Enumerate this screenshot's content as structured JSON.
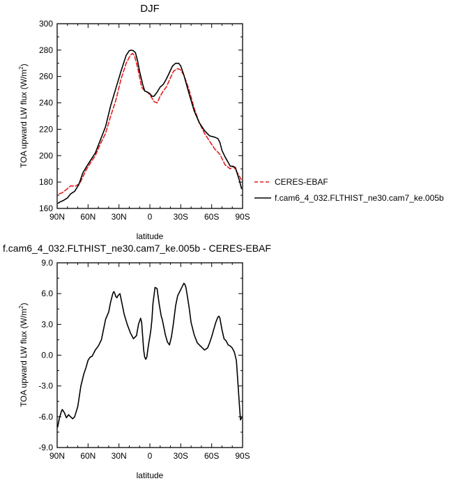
{
  "chart_data": [
    {
      "type": "line",
      "title": "DJF",
      "xlabel": "latitude",
      "ylabel": "TOA upward LW flux (W/m",
      "ylabel_sup": "2",
      "ylabel_close": ")",
      "xlim": [
        90,
        -90
      ],
      "ylim": [
        160,
        300
      ],
      "xticks": [
        90,
        60,
        30,
        0,
        -30,
        -60,
        -90
      ],
      "xtick_labels": [
        "90N",
        "60N",
        "30N",
        "0",
        "30S",
        "60S",
        "90S"
      ],
      "yticks": [
        160,
        180,
        200,
        220,
        240,
        260,
        280,
        300
      ],
      "ytick_labels": [
        "160",
        "180",
        "200",
        "220",
        "240",
        "260",
        "280",
        "300"
      ],
      "legend_position": "right",
      "series": [
        {
          "name": "CERES-EBAF",
          "color": "#e41a1c",
          "dash": "dashed",
          "x": [
            88,
            85,
            80,
            77,
            72,
            68,
            62,
            58,
            53,
            48,
            43,
            38,
            33,
            28,
            23,
            19,
            17,
            15,
            12,
            8,
            5,
            2,
            -1,
            -4,
            -7,
            -10,
            -13,
            -16,
            -20,
            -23,
            -27,
            -30,
            -33,
            -38,
            -43,
            -48,
            -53,
            -58,
            -63,
            -68,
            -73,
            -78,
            -81,
            -85,
            -88,
            -89
          ],
          "y": [
            171,
            172,
            175,
            177,
            177,
            179,
            189,
            194,
            200,
            209,
            217,
            230,
            242,
            258,
            270,
            276,
            277.5,
            276,
            267,
            252,
            249,
            248,
            245,
            241,
            240,
            245,
            249,
            252,
            259,
            264,
            266,
            265,
            261,
            250,
            236,
            225,
            217,
            211,
            205,
            201,
            193,
            190,
            192,
            187,
            183,
            181
          ]
        },
        {
          "name": "f.cam6_4_032.FLTHIST_ne30.cam7_ke.005b",
          "color": "#000000",
          "dash": "solid",
          "x": [
            89,
            87,
            84,
            80,
            77,
            73,
            69,
            65,
            62,
            58,
            53,
            48,
            43,
            38,
            33,
            28,
            23,
            20,
            18,
            16,
            14,
            12,
            10,
            7,
            5,
            2,
            0,
            -2,
            -4,
            -7,
            -10,
            -13,
            -16,
            -19,
            -22,
            -25,
            -28,
            -30,
            -33,
            -38,
            -43,
            -48,
            -53,
            -58,
            -63,
            -66,
            -68,
            -70,
            -73,
            -76,
            -78,
            -80,
            -83,
            -85,
            -87,
            -89
          ],
          "y": [
            164,
            165,
            166,
            168,
            171,
            173,
            178,
            187,
            191,
            196,
            202,
            212,
            222,
            238,
            251,
            264,
            276,
            279.5,
            280,
            279.5,
            278,
            272,
            264,
            254,
            249,
            248,
            247,
            245,
            245,
            248,
            252,
            254,
            258,
            263,
            268,
            270,
            270,
            268,
            261,
            247,
            234,
            225,
            219,
            215,
            214,
            213,
            210,
            204,
            199,
            195,
            192,
            192,
            191,
            186,
            181,
            175
          ]
        }
      ]
    },
    {
      "type": "line",
      "title": "f.cam6_4_032.FLTHIST_ne30.cam7_ke.005b - CERES-EBAF",
      "xlabel": "latitude",
      "ylabel": "TOA upward LW flux (W/m",
      "ylabel_sup": "2",
      "ylabel_close": ")",
      "xlim": [
        90,
        -90
      ],
      "ylim": [
        -9,
        9
      ],
      "xticks": [
        90,
        60,
        30,
        0,
        -30,
        -60,
        -90
      ],
      "xtick_labels": [
        "90N",
        "60N",
        "30N",
        "0",
        "30S",
        "60S",
        "90S"
      ],
      "yticks": [
        -9,
        -6,
        -3,
        0,
        3,
        6,
        9
      ],
      "ytick_labels": [
        "-9.0",
        "-6.0",
        "-3.0",
        "0.0",
        "3.0",
        "6.0",
        "9.0"
      ],
      "series": [
        {
          "name": "",
          "color": "#000000",
          "dash": "solid",
          "x": [
            89.5,
            88,
            86,
            85,
            83,
            81,
            79,
            77,
            75,
            73,
            70,
            67,
            64,
            62,
            60,
            58,
            56,
            53,
            50,
            47,
            45,
            43,
            40,
            38,
            36,
            35,
            34,
            33,
            32,
            31,
            30,
            29,
            27,
            25,
            22,
            19,
            16,
            13,
            11,
            9,
            8,
            7,
            6,
            5,
            4,
            3,
            2,
            1,
            0,
            -1,
            -2,
            -3,
            -5,
            -7,
            -9,
            -11,
            -12,
            -13,
            -15,
            -17,
            -19,
            -21,
            -23,
            -25,
            -27,
            -29,
            -31,
            -33,
            -34,
            -35,
            -36,
            -38,
            -40,
            -43,
            -46,
            -50,
            -53,
            -56,
            -58,
            -60,
            -62,
            -64,
            -66,
            -67,
            -68,
            -70,
            -72,
            -74,
            -76,
            -78,
            -80,
            -82,
            -84,
            -85,
            -86,
            -87,
            -88,
            -89
          ],
          "y": [
            -7,
            -6.2,
            -5.5,
            -5.3,
            -5.6,
            -6.1,
            -5.8,
            -6.0,
            -6.2,
            -6.0,
            -5.0,
            -3.0,
            -1.8,
            -1.2,
            -0.5,
            -0.2,
            -0.1,
            0.5,
            0.9,
            1.5,
            2.5,
            3.5,
            4.2,
            5.2,
            6.0,
            6.2,
            6.0,
            5.7,
            5.6,
            5.8,
            5.9,
            6.0,
            5.0,
            4.0,
            3.0,
            2.2,
            1.6,
            1.9,
            3.0,
            3.6,
            3.2,
            1.8,
            0.5,
            -0.2,
            -0.4,
            -0.2,
            0.5,
            1.2,
            1.8,
            2.5,
            3.5,
            5.0,
            6.6,
            6.5,
            5.0,
            3.8,
            3.5,
            3.0,
            2.0,
            1.3,
            1.0,
            1.8,
            3.2,
            4.8,
            5.8,
            6.2,
            6.6,
            7.0,
            6.9,
            6.6,
            6.0,
            4.7,
            3.2,
            2.0,
            1.2,
            0.8,
            0.5,
            0.7,
            1.2,
            1.8,
            2.5,
            3.2,
            3.7,
            3.8,
            3.6,
            2.5,
            1.6,
            1.4,
            1.0,
            0.9,
            0.7,
            0.3,
            -0.5,
            -2.0,
            -3.5,
            -5.0,
            -6.3,
            -6.1
          ]
        }
      ]
    }
  ]
}
